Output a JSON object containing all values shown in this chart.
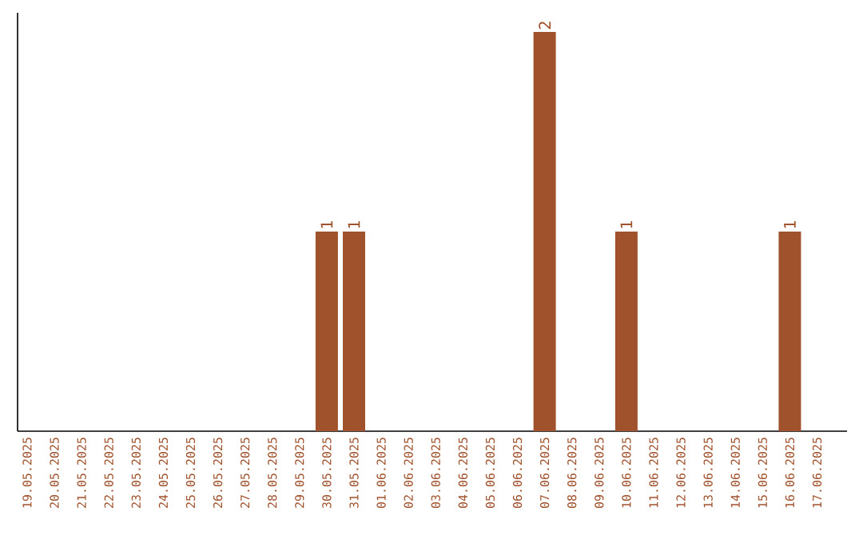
{
  "chart_data": {
    "type": "bar",
    "color": "#a0522d",
    "categories": [
      "19.05.2025",
      "20.05.2025",
      "21.05.2025",
      "22.05.2025",
      "23.05.2025",
      "24.05.2025",
      "25.05.2025",
      "26.05.2025",
      "27.05.2025",
      "28.05.2025",
      "29.05.2025",
      "30.05.2025",
      "31.05.2025",
      "01.06.2025",
      "02.06.2025",
      "03.06.2025",
      "04.06.2025",
      "05.06.2025",
      "06.06.2025",
      "07.06.2025",
      "08.06.2025",
      "09.06.2025",
      "10.06.2025",
      "11.06.2025",
      "12.06.2025",
      "13.06.2025",
      "14.06.2025",
      "15.06.2025",
      "16.06.2025",
      "17.06.2025"
    ],
    "values": [
      0,
      0,
      0,
      0,
      0,
      0,
      0,
      0,
      0,
      0,
      0,
      1,
      1,
      0,
      0,
      0,
      0,
      0,
      0,
      2,
      0,
      0,
      1,
      0,
      0,
      0,
      0,
      0,
      1,
      0
    ],
    "value_labels": [
      null,
      null,
      null,
      null,
      null,
      null,
      null,
      null,
      null,
      null,
      null,
      "1",
      "1",
      null,
      null,
      null,
      null,
      null,
      null,
      "2",
      null,
      null,
      "1",
      null,
      null,
      null,
      null,
      null,
      "1",
      null
    ],
    "tick_labels": "x"
  }
}
